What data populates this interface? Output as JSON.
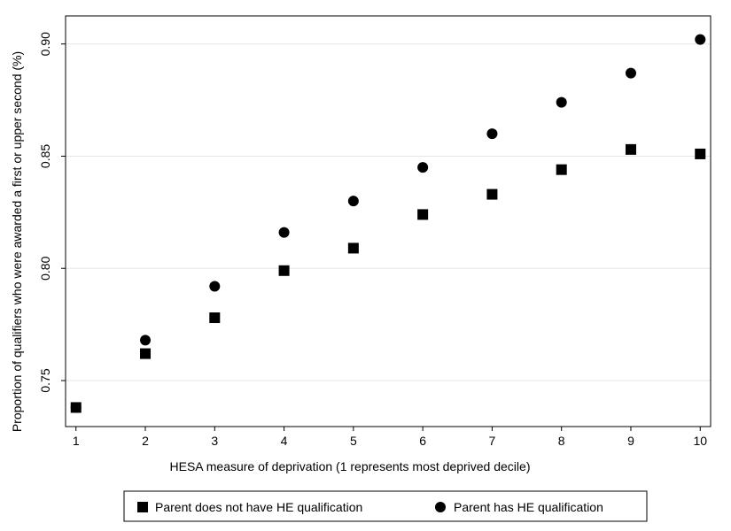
{
  "chart_data": {
    "type": "scatter",
    "xlabel": "HESA measure of deprivation (1 represents most deprived decile)",
    "ylabel": "Proportion of qualifiers who were awarded a first or upper second (%)",
    "x_ticks": [
      "1",
      "2",
      "3",
      "4",
      "5",
      "6",
      "7",
      "8",
      "9",
      "10"
    ],
    "y_ticks": [
      "0.75",
      "0.80",
      "0.85",
      "0.90"
    ],
    "xlim": [
      0.85,
      10.15
    ],
    "ylim": [
      0.7295,
      0.9125
    ],
    "grid": true,
    "legend_position": "bottom",
    "colors": {
      "marker": "#000000",
      "grid": "#e6e6e6",
      "axis": "#000000"
    },
    "x": [
      1,
      2,
      3,
      4,
      5,
      6,
      7,
      8,
      9,
      10
    ],
    "series": [
      {
        "name": "Parent does not have HE qualification",
        "marker": "square",
        "values": [
          0.738,
          0.762,
          0.778,
          0.799,
          0.809,
          0.824,
          0.833,
          0.844,
          0.853,
          0.851
        ]
      },
      {
        "name": "Parent has HE qualification",
        "marker": "circle",
        "values": [
          0.738,
          0.768,
          0.792,
          0.816,
          0.83,
          0.845,
          0.86,
          0.874,
          0.887,
          0.902
        ]
      }
    ]
  }
}
